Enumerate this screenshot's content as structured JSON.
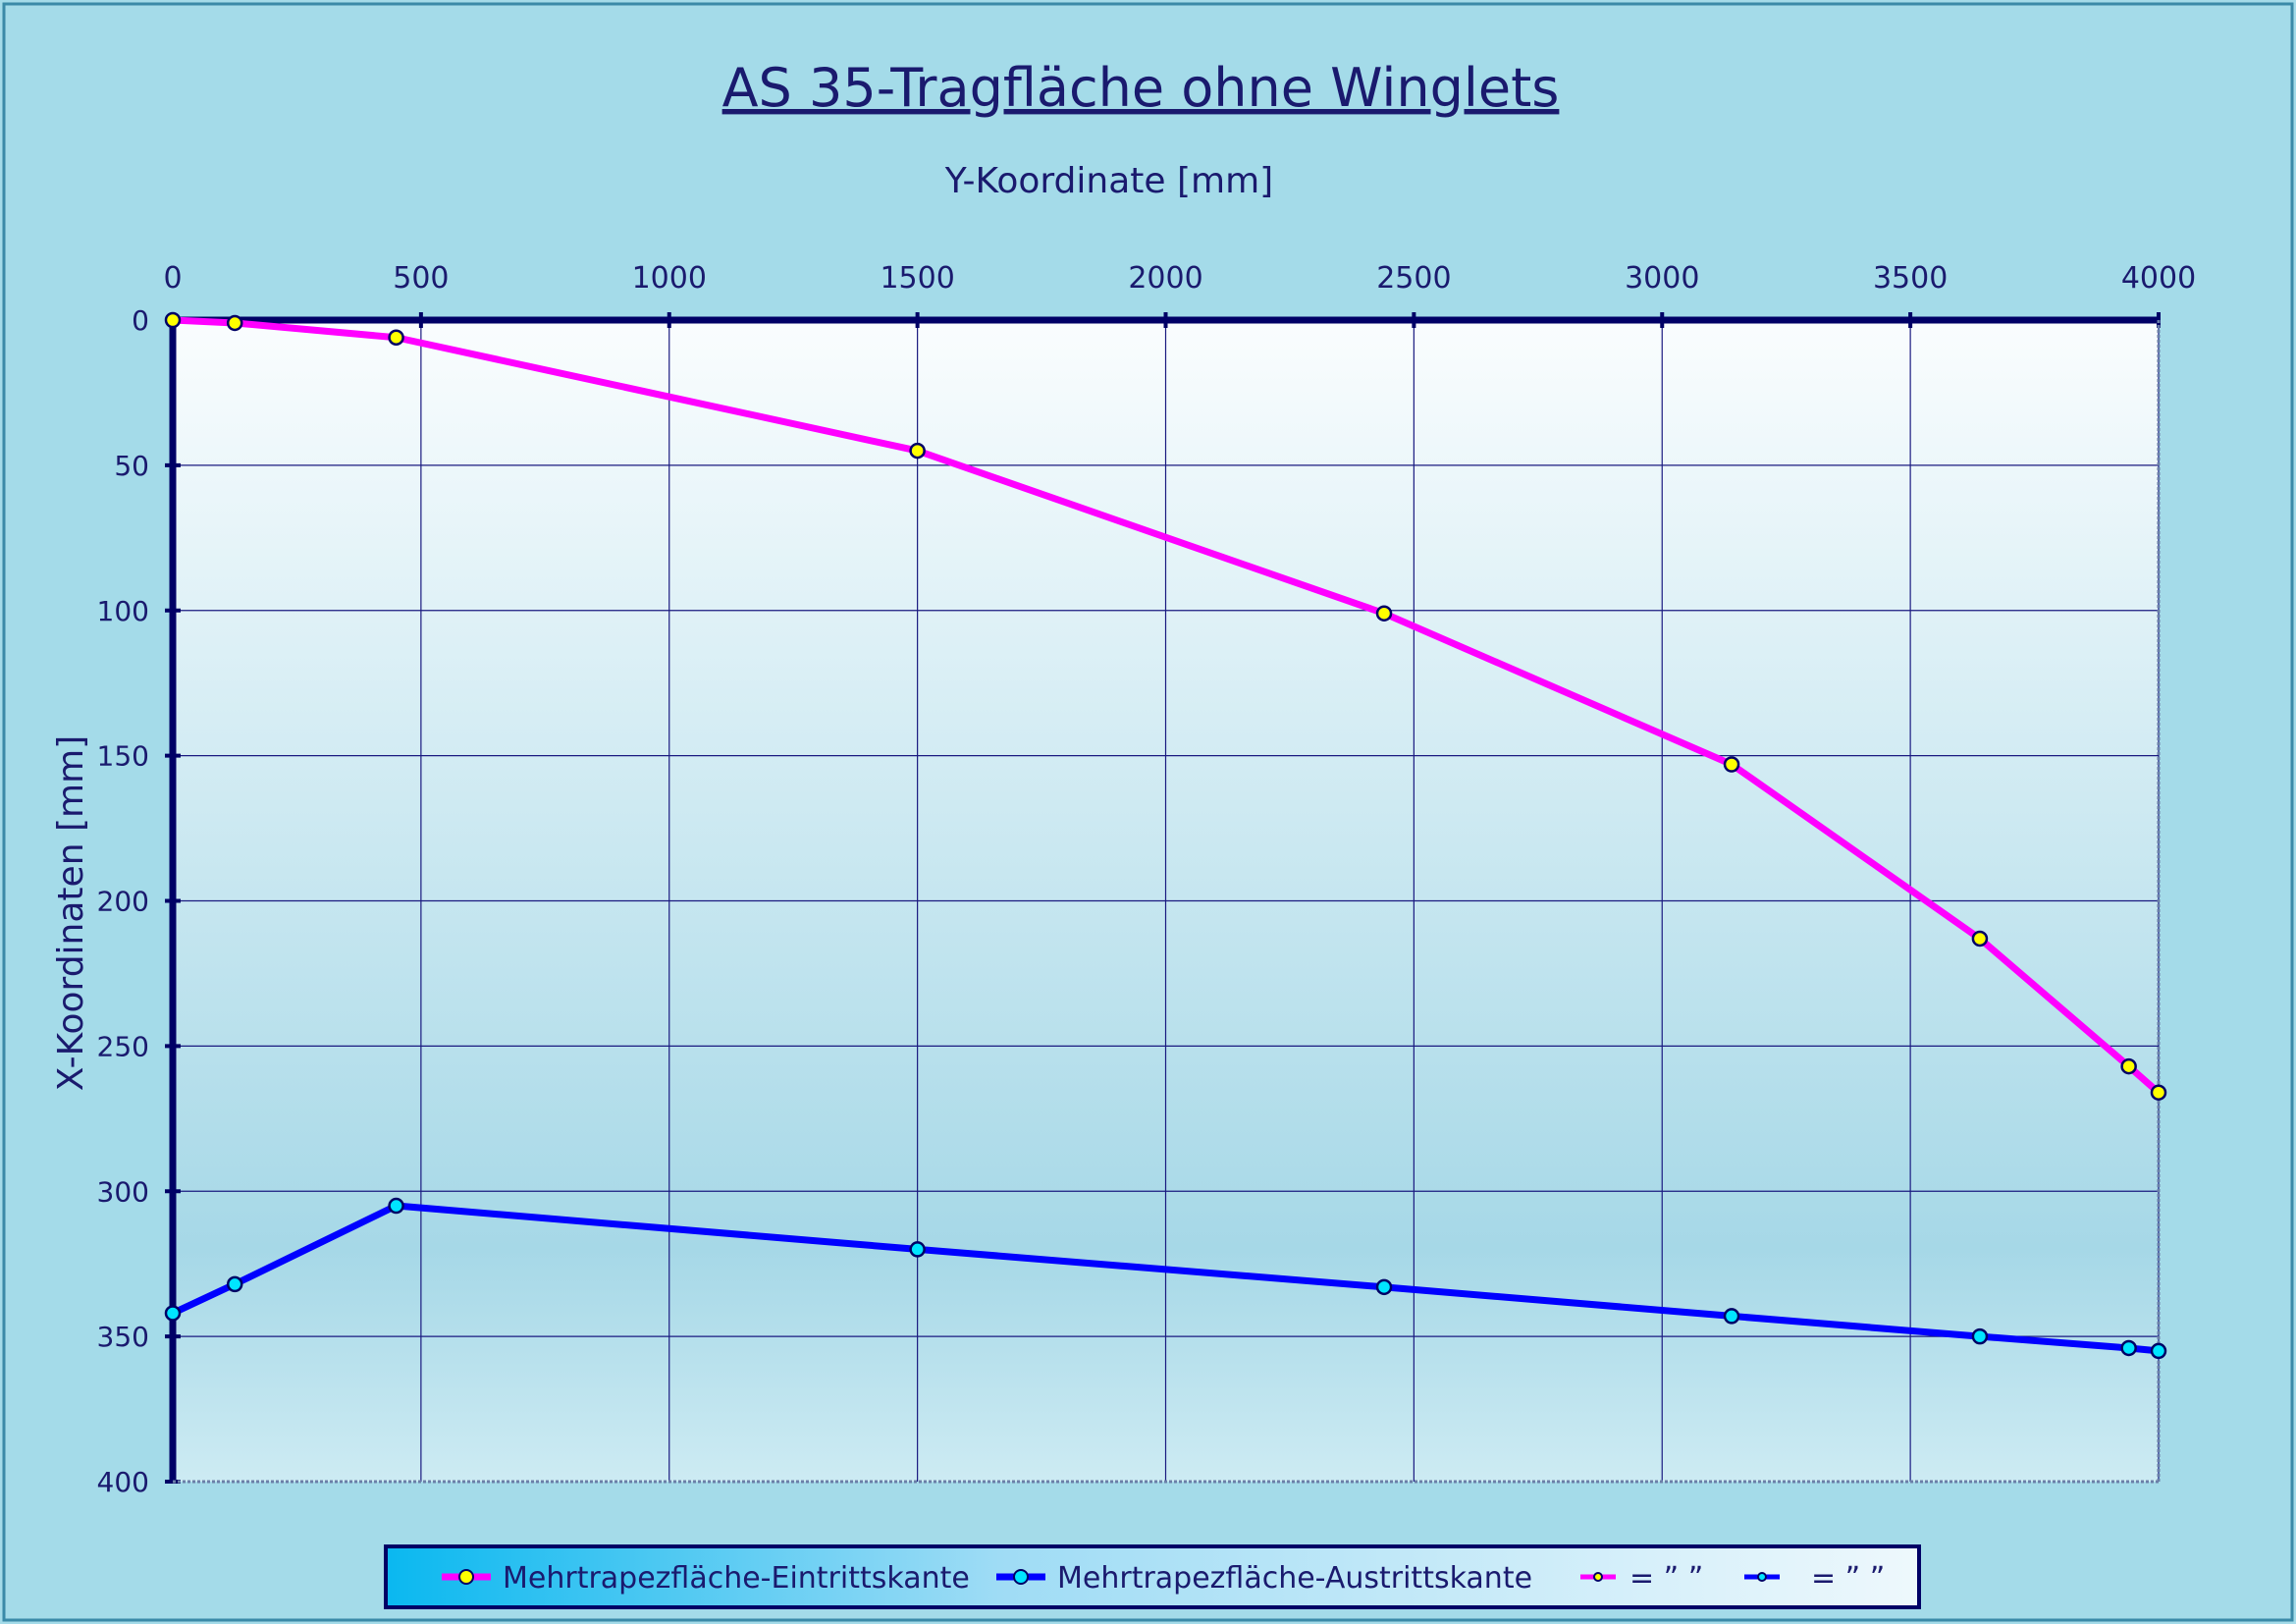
{
  "chart_data": {
    "type": "line",
    "title": "AS 35-Tragfläche ohne Winglets",
    "xlabel": "Y-Koordinate [mm]",
    "ylabel": "X-Koordinaten [mm]",
    "xlim": [
      0,
      4000
    ],
    "ylim": [
      0,
      400
    ],
    "y_inverted": true,
    "x_axis_position": "top",
    "grid": true,
    "x_ticks": [
      "0",
      "500",
      "1000",
      "1500",
      "2000",
      "2500",
      "3000",
      "3500",
      "4000"
    ],
    "y_ticks": [
      "0",
      "50",
      "100",
      "150",
      "200",
      "250",
      "300",
      "350",
      "400"
    ],
    "legend_position": "bottom",
    "series": [
      {
        "name": "Mehrtrapezfläche-Eintrittskante",
        "color": "#ff00ff",
        "marker_color": "#ffff00",
        "points": [
          [
            0,
            0
          ],
          [
            125,
            1
          ],
          [
            450,
            6
          ],
          [
            1500,
            45
          ],
          [
            2440,
            101
          ],
          [
            3140,
            153
          ],
          [
            3640,
            213
          ],
          [
            3940,
            257
          ],
          [
            4000,
            266
          ]
        ]
      },
      {
        "name": "Mehrtrapezfläche-Austrittskante",
        "color": "#0000ff",
        "marker_color": "#00e5ff",
        "points": [
          [
            0,
            342
          ],
          [
            125,
            332
          ],
          [
            450,
            305
          ],
          [
            1500,
            320
          ],
          [
            2440,
            333
          ],
          [
            3140,
            343
          ],
          [
            3640,
            350
          ],
          [
            3940,
            354
          ],
          [
            4000,
            355
          ]
        ]
      },
      {
        "name": "= ” ”",
        "color": "#ff00ff",
        "marker_color": "#ffff00",
        "points": []
      },
      {
        "name": "= ” ”",
        "color": "#0000ff",
        "marker_color": "#00e5ff",
        "points": []
      }
    ]
  }
}
